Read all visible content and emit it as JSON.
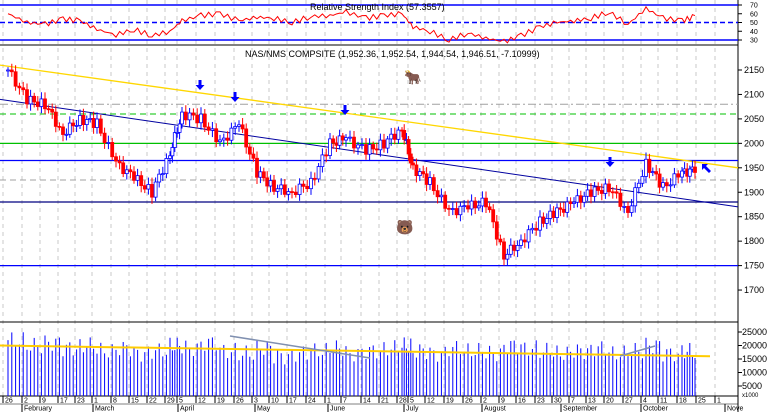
{
  "chart_data": [
    {
      "type": "line",
      "title": "Relative Strength Index (57.3557)",
      "ylim": [
        25,
        75
      ],
      "yticks": [
        30,
        40,
        50,
        60,
        70
      ],
      "reference_lines": {
        "solid": [
          70,
          30
        ],
        "dashed": [
          50
        ]
      },
      "series_color": "#ff0000",
      "values": [
        60,
        50,
        48,
        54,
        52,
        42,
        36,
        42,
        35,
        40,
        52,
        58,
        60,
        52,
        56,
        55,
        50,
        57,
        58,
        62,
        55,
        58,
        60,
        45,
        40,
        30,
        38,
        32,
        28,
        35,
        45,
        50,
        52,
        55,
        62,
        48,
        66,
        55,
        52,
        57
      ]
    },
    {
      "type": "candlestick",
      "title": "NAS/NMS COMPSITE (1,952.36, 1,952.54, 1,944.54, 1,946.51, -7.10999)",
      "ylim": [
        1650,
        2170
      ],
      "yticks": [
        1700,
        1750,
        1800,
        1850,
        1900,
        1950,
        2000,
        2050,
        2100,
        2150
      ],
      "weekly_close": [
        2150,
        2089,
        2080,
        2020,
        2050,
        2040,
        1960,
        1930,
        1900,
        1980,
        2060,
        2050,
        2000,
        2040,
        1940,
        1910,
        1900,
        1920,
        2000,
        2010,
        1985,
        2000,
        2030,
        1950,
        1920,
        1860,
        1870,
        1880,
        1770,
        1800,
        1840,
        1860,
        1880,
        1900,
        1910,
        1860,
        1960,
        1910,
        1940,
        1946.51
      ],
      "horizontal_lines": [
        {
          "value": 1965,
          "color": "#0000ff"
        },
        {
          "value": 1880,
          "color": "#000080"
        },
        {
          "value": 1750,
          "color": "#0000ff"
        },
        {
          "value": 2000,
          "color": "#00c000"
        },
        {
          "value": 2060,
          "color": "#00c000",
          "style": "dashed"
        },
        {
          "value": 2080,
          "color": "#a0a0a0",
          "style": "dashdot"
        },
        {
          "value": 1925,
          "color": "#a0a0a0",
          "style": "dashed"
        }
      ],
      "trendlines": [
        {
          "color": "#ffd700",
          "from": 2160,
          "to": 1950
        },
        {
          "color": "#0000a0",
          "from": 2090,
          "to": 1870
        }
      ],
      "up_color": "#0000ff",
      "down_color": "#ff0000"
    },
    {
      "type": "bar",
      "title": "",
      "unit_label": "x1000",
      "ylim": [
        0,
        28000
      ],
      "yticks": [
        5000,
        10000,
        15000,
        20000,
        25000
      ],
      "bar_color": "#0000ff",
      "ma_color": "#ffcc00",
      "weekly_volume": [
        22000,
        20000,
        21000,
        19000,
        20000,
        18000,
        19000,
        17000,
        18000,
        20000,
        19000,
        21000,
        18000,
        17000,
        19000,
        16000,
        17000,
        18000,
        19000,
        17000,
        18000,
        19000,
        20000,
        18000,
        17000,
        19000,
        18000,
        17000,
        20000,
        19000,
        18000,
        17000,
        18000,
        19000,
        17000,
        18000,
        20000,
        17000,
        18000,
        16000
      ],
      "ma_start": 20000,
      "ma_end": 16000
    }
  ],
  "x_axis": {
    "day_labels": [
      "26",
      "2",
      "9",
      "17",
      "23",
      "1",
      "8",
      "15",
      "22",
      "29",
      "5",
      "12",
      "19",
      "26",
      "3",
      "10",
      "17",
      "24",
      "1",
      "7",
      "14",
      "21",
      "28",
      "5",
      "12",
      "19",
      "26",
      "2",
      "9",
      "16",
      "23",
      "30",
      "7",
      "13",
      "20",
      "27",
      "4",
      "11",
      "18",
      "25",
      "1"
    ],
    "months": [
      "February",
      "March",
      "April",
      "May",
      "June",
      "July",
      "August",
      "September",
      "October",
      "Nove"
    ]
  },
  "icons": {
    "signals": "arrow-down-icon",
    "bull": "bull-icon",
    "bear": "bear-icon"
  }
}
